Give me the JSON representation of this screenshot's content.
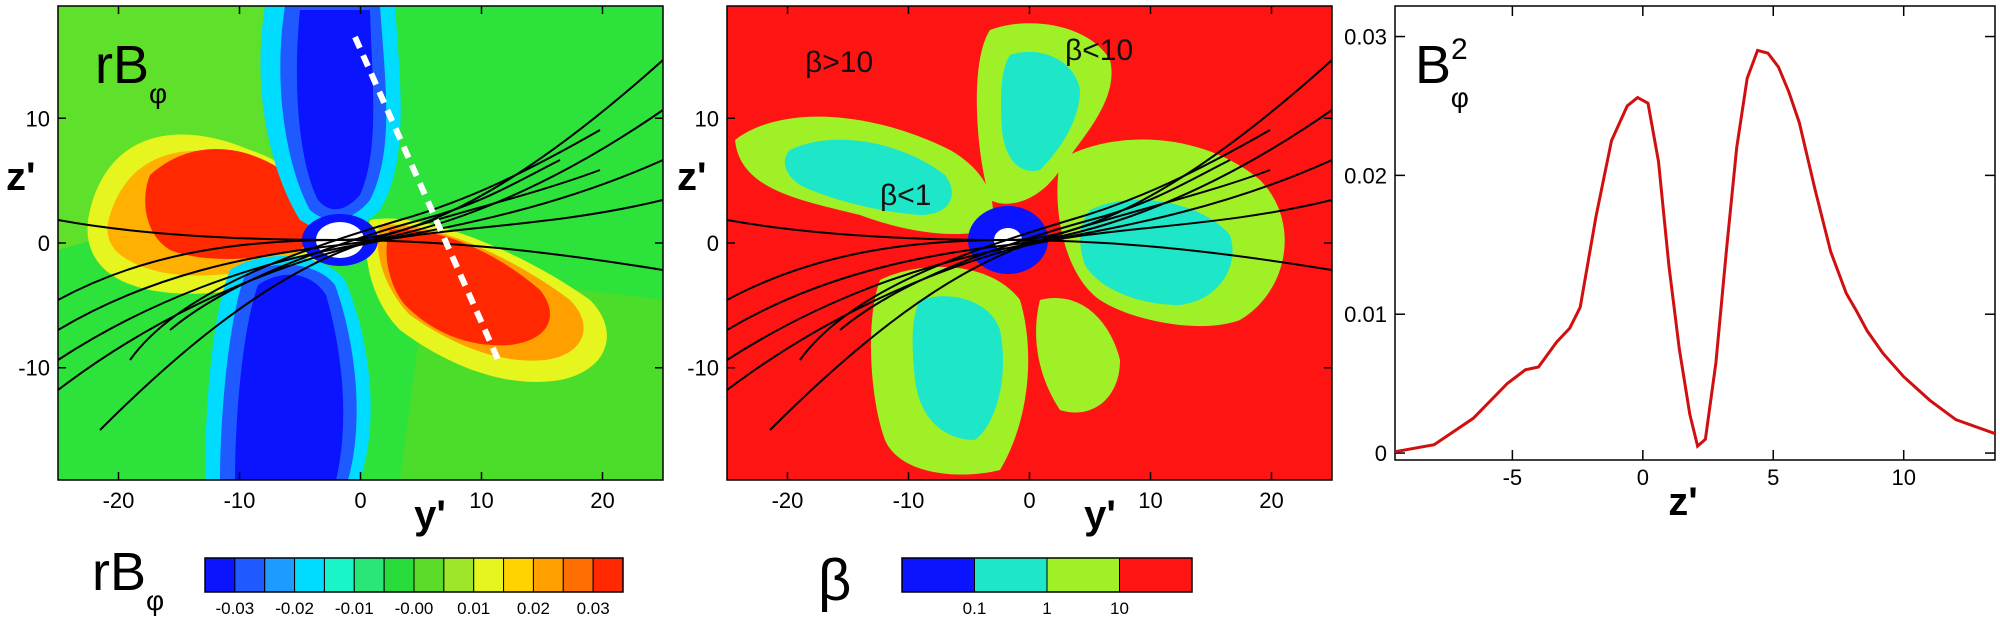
{
  "chart_data": [
    {
      "type": "heatmap",
      "panel_label": "rBφ",
      "panel_label_main": "rB",
      "panel_label_sub": "φ",
      "xlabel": "y'",
      "ylabel": "z'",
      "xlim": [
        -25,
        25
      ],
      "ylim": [
        -19,
        19
      ],
      "x_ticks": [
        "-20",
        "-10",
        "0",
        "10",
        "20"
      ],
      "y_ticks": [
        "10",
        "0",
        "-10"
      ],
      "colorbar": {
        "label_main": "rB",
        "label_sub": "φ",
        "ticks": [
          "-0.03",
          "-0.02",
          "-0.01",
          "-0.00",
          "0.01",
          "0.02",
          "0.03"
        ],
        "colors": [
          "#0a14ff",
          "#1e5aff",
          "#1e9bff",
          "#00dcff",
          "#19f5c8",
          "#28e678",
          "#28dc3c",
          "#5adc28",
          "#a0e628",
          "#e6f51e",
          "#ffd200",
          "#ffa000",
          "#ff6e00",
          "#ff2800"
        ]
      },
      "cut_line": {
        "from": [
          0,
          17
        ],
        "to": [
          12,
          -10
        ],
        "style": "dashed",
        "color": "#ffffff"
      }
    },
    {
      "type": "heatmap",
      "xlabel": "y'",
      "ylabel": "z'",
      "xlim": [
        -25,
        25
      ],
      "ylim": [
        -19,
        19
      ],
      "x_ticks": [
        "-20",
        "-10",
        "0",
        "10",
        "20"
      ],
      "y_ticks": [
        "10",
        "0",
        "-10"
      ],
      "annotations": [
        {
          "text": "β>10",
          "x": -14,
          "y": 14
        },
        {
          "text": "β<10",
          "x": 5,
          "y": 15
        },
        {
          "text": "β<1",
          "x": -9,
          "y": 3.5
        }
      ],
      "colorbar": {
        "label": "β",
        "ticks": [
          "0.1",
          "1",
          "10"
        ],
        "colors": [
          "#0a14ff",
          "#1ee6c8",
          "#a0f028",
          "#ff1414"
        ]
      }
    },
    {
      "type": "line",
      "panel_label_main": "B",
      "panel_label_sub": "φ",
      "panel_label_sup": "2",
      "xlabel": "z'",
      "ylabel": "",
      "xlim": [
        -9.5,
        13.5
      ],
      "ylim": [
        -0.0005,
        0.0322
      ],
      "x_ticks": [
        "-5",
        "0",
        "5",
        "10"
      ],
      "y_ticks": [
        "0",
        "0.01",
        "0.02",
        "0.03"
      ],
      "series": [
        {
          "color": "#d01010",
          "x": [
            -9.5,
            -8,
            -6.5,
            -5.2,
            -4.5,
            -4,
            -3.3,
            -2.8,
            -2.4,
            -1.8,
            -1.2,
            -0.6,
            -0.2,
            0.2,
            0.6,
            1.0,
            1.4,
            1.8,
            2.1,
            2.4,
            2.8,
            3.2,
            3.6,
            4.0,
            4.4,
            4.8,
            5.2,
            5.6,
            6.0,
            6.6,
            7.2,
            7.8,
            8.2,
            8.6,
            9.2,
            10,
            11,
            12,
            13.5
          ],
          "y": [
            0.0001,
            0.0006,
            0.0025,
            0.005,
            0.006,
            0.0062,
            0.008,
            0.009,
            0.0105,
            0.017,
            0.0225,
            0.025,
            0.0256,
            0.0252,
            0.021,
            0.0135,
            0.0075,
            0.0028,
            0.0005,
            0.001,
            0.0065,
            0.0145,
            0.022,
            0.027,
            0.029,
            0.0288,
            0.0278,
            0.026,
            0.0238,
            0.019,
            0.0145,
            0.0115,
            0.0102,
            0.0088,
            0.0072,
            0.0055,
            0.0038,
            0.0024,
            0.0014
          ]
        }
      ]
    }
  ]
}
